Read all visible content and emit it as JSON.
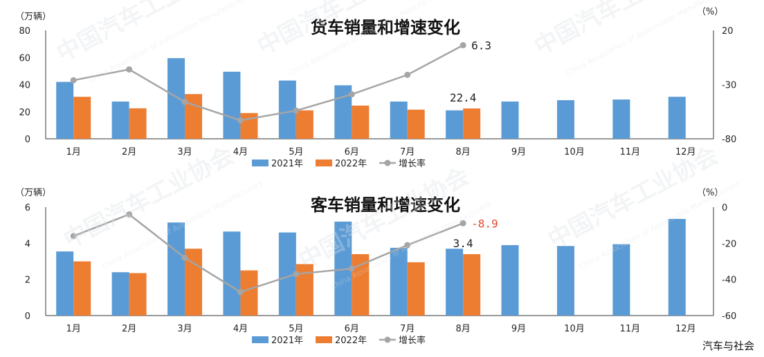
{
  "chart_data": [
    {
      "type": "bar",
      "title": "货车销量和增速变化",
      "ylabel": "（万辆）",
      "y2label": "（%）",
      "categories": [
        "1月",
        "2月",
        "3月",
        "4月",
        "5月",
        "6月",
        "7月",
        "8月",
        "9月",
        "10月",
        "11月",
        "12月"
      ],
      "ylim": [
        0,
        80
      ],
      "yticks": [
        0,
        20,
        40,
        60,
        80
      ],
      "y2lim": [
        -80,
        20
      ],
      "y2ticks": [
        -80,
        -30,
        20
      ],
      "series": [
        {
          "name": "2021年",
          "type": "bar",
          "color": "#5B9BD5",
          "values": [
            42,
            27.5,
            59.5,
            49.5,
            43,
            39.5,
            27.5,
            21,
            27.5,
            28.5,
            29,
            31
          ]
        },
        {
          "name": "2022年",
          "type": "bar",
          "color": "#ED7D31",
          "values": [
            31,
            22.5,
            33,
            19,
            21,
            24.5,
            21.5,
            22.4,
            null,
            null,
            null,
            null
          ]
        },
        {
          "name": "增长率",
          "type": "line",
          "axis": "right",
          "color": "#A5A5A5",
          "values": [
            -26,
            -16,
            -46,
            -63,
            -54,
            -39,
            -21,
            6.3,
            null,
            null,
            null,
            null
          ]
        }
      ],
      "annotations": [
        {
          "text": "6.3",
          "series": "增长率",
          "index": 7,
          "color": "#222222"
        },
        {
          "text": "22.4",
          "series": "2022年",
          "index": 7,
          "color": "#222222"
        }
      ],
      "legend": "bottom",
      "grid": false
    },
    {
      "type": "bar",
      "title": "客车销量和增速变化",
      "ylabel": "（万辆）",
      "y2label": "（%）",
      "categories": [
        "1月",
        "2月",
        "3月",
        "4月",
        "5月",
        "6月",
        "7月",
        "8月",
        "9月",
        "10月",
        "11月",
        "12月"
      ],
      "ylim": [
        0,
        6
      ],
      "yticks": [
        0,
        2,
        4,
        6
      ],
      "y2lim": [
        -60,
        0
      ],
      "y2ticks": [
        -60,
        -40,
        -20,
        0
      ],
      "series": [
        {
          "name": "2021年",
          "type": "bar",
          "color": "#5B9BD5",
          "values": [
            3.55,
            2.4,
            5.15,
            4.65,
            4.6,
            5.2,
            3.75,
            3.7,
            3.9,
            3.85,
            3.95,
            5.35
          ]
        },
        {
          "name": "2022年",
          "type": "bar",
          "color": "#ED7D31",
          "values": [
            3.0,
            2.35,
            3.7,
            2.5,
            2.85,
            3.4,
            2.95,
            3.4,
            null,
            null,
            null,
            null
          ]
        },
        {
          "name": "增长率",
          "type": "line",
          "axis": "right",
          "color": "#A5A5A5",
          "values": [
            -16,
            -4,
            -28,
            -47,
            -37,
            -34,
            -21,
            -8.9,
            null,
            null,
            null,
            null
          ]
        }
      ],
      "annotations": [
        {
          "text": "-8.9",
          "series": "增长率",
          "index": 7,
          "color": "#E04A2F"
        },
        {
          "text": "3.4",
          "series": "2022年",
          "index": 7,
          "color": "#222222"
        }
      ],
      "legend": "bottom",
      "grid": false
    }
  ],
  "credit": "汽车与社会",
  "watermark_text": "中国汽车工业协会",
  "watermark_subtext": "China Association of Automobile Manufacturers"
}
